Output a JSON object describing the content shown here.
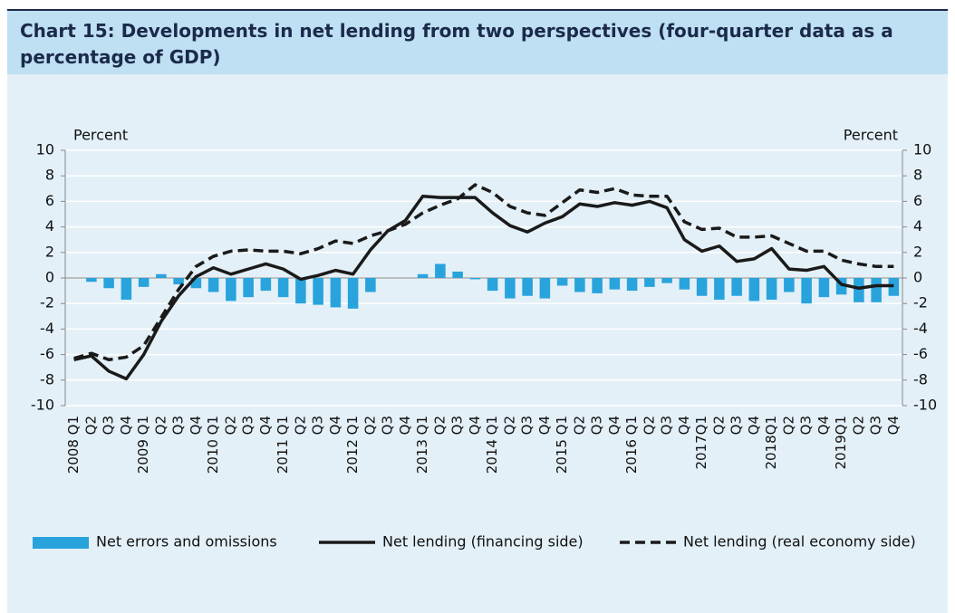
{
  "chart_data": {
    "type": "combo",
    "title": "Chart 15: Developments in net lending from two perspectives (four-quarter data as a percentage of GDP)",
    "ylabel": "Percent",
    "y2label": "Percent",
    "categories": [
      "2008 Q1",
      "Q2",
      "Q3",
      "Q4",
      "2009 Q1",
      "Q2",
      "Q3",
      "Q4",
      "2010 Q1",
      "Q2",
      "Q3",
      "Q4",
      "2011 Q1",
      "Q2",
      "Q3",
      "Q4",
      "2012 Q1",
      "Q2",
      "Q3",
      "Q4",
      "2013 Q1",
      "Q2",
      "Q3",
      "Q4",
      "2014 Q1",
      "Q2",
      "Q3",
      "Q4",
      "2015 Q1",
      "Q2",
      "Q3",
      "Q4",
      "2016 Q1",
      "Q2",
      "Q3",
      "Q4",
      "2017Q1",
      "Q2",
      "Q3",
      "Q4",
      "2018Q1",
      "Q2",
      "Q3",
      "Q4",
      "2019Q1",
      "Q2",
      "Q3",
      "Q4"
    ],
    "series": [
      {
        "name": "Net errors and omissions",
        "type": "bar",
        "color": "#29a3dc",
        "values": [
          0,
          -0.3,
          -0.8,
          -1.7,
          -0.7,
          0.3,
          -0.5,
          -0.8,
          -1.1,
          -1.8,
          -1.5,
          -1.0,
          -1.5,
          -2.0,
          -2.1,
          -2.3,
          -2.4,
          -1.1,
          0,
          0,
          0.3,
          1.1,
          0.5,
          -0.1,
          -1.0,
          -1.6,
          -1.4,
          -1.6,
          -0.6,
          -1.1,
          -1.2,
          -0.9,
          -1.0,
          -0.7,
          -0.4,
          -0.9,
          -1.4,
          -1.7,
          -1.4,
          -1.8,
          -1.7,
          -1.1,
          -2.0,
          -1.5,
          -1.3,
          -1.9,
          -1.9,
          -1.4
        ]
      },
      {
        "name": "Net lending (financing side)",
        "type": "line",
        "dashed": false,
        "color": "#1a1a1a",
        "values": [
          -6.4,
          -6.1,
          -7.3,
          -7.9,
          -6.0,
          -3.4,
          -1.4,
          0.1,
          0.8,
          0.3,
          0.7,
          1.1,
          0.7,
          -0.1,
          0.2,
          0.6,
          0.3,
          2.2,
          3.7,
          4.5,
          6.4,
          6.3,
          6.3,
          6.3,
          5.1,
          4.1,
          3.6,
          4.3,
          4.8,
          5.8,
          5.6,
          5.9,
          5.7,
          6.0,
          5.5,
          3.0,
          2.1,
          2.5,
          1.3,
          1.5,
          2.3,
          0.7,
          0.6,
          0.9,
          -0.5,
          -0.8,
          -0.6,
          -0.6
        ]
      },
      {
        "name": "Net lending (real economy side)",
        "type": "line",
        "dashed": true,
        "color": "#1a1a1a",
        "values": [
          -6.3,
          -5.9,
          -6.4,
          -6.2,
          -5.3,
          -3.1,
          -0.9,
          0.9,
          1.7,
          2.1,
          2.2,
          2.1,
          2.1,
          1.9,
          2.3,
          2.9,
          2.7,
          3.3,
          3.7,
          4.2,
          5.1,
          5.7,
          6.2,
          7.3,
          6.7,
          5.6,
          5.1,
          4.9,
          5.9,
          6.9,
          6.7,
          7.0,
          6.5,
          6.4,
          6.4,
          4.4,
          3.8,
          3.9,
          3.2,
          3.2,
          3.3,
          2.7,
          2.1,
          2.1,
          1.4,
          1.1,
          0.9,
          0.9
        ]
      }
    ],
    "ylim": [
      -10,
      10
    ],
    "yticks": [
      -10,
      -8,
      -6,
      -4,
      -2,
      0,
      2,
      4,
      6,
      8,
      10
    ],
    "y2lim": [
      -10,
      10
    ],
    "y2ticks": [
      -10,
      -8,
      -6,
      -4,
      -2,
      0,
      2,
      4,
      6,
      8,
      10
    ],
    "grid": true,
    "legend": "bottom"
  }
}
